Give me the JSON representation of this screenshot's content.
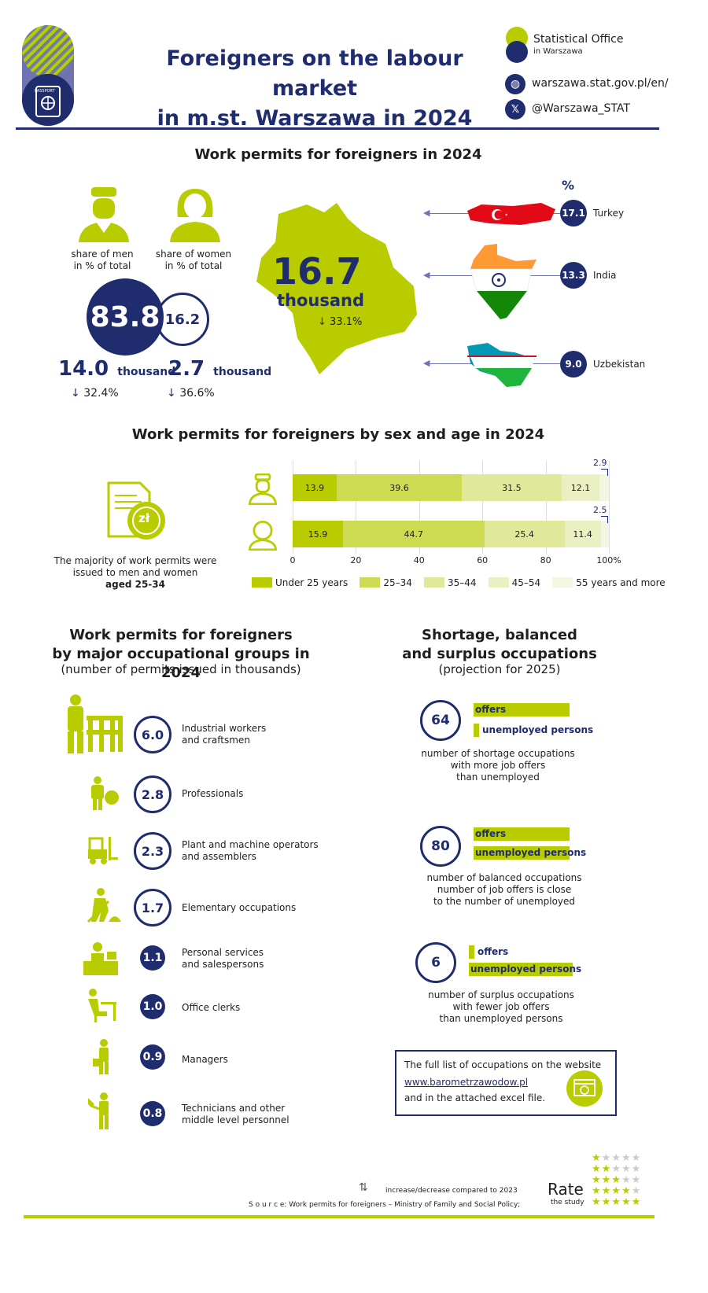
{
  "header": {
    "title_line1": "Foreigners on the labour market",
    "title_line2": "in m.st. Warszawa in 2024",
    "org_name": "Statistical Office",
    "org_sub": "in Warszawa",
    "website": "warszawa.stat.gov.pl/en/",
    "twitter": "@Warszawa_STAT",
    "passport_label": "PASSPORT"
  },
  "permits": {
    "title": "Work permits for foreigners in 2024",
    "men_label_1": "share of men",
    "men_label_2": "in % of total",
    "women_label_1": "share of women",
    "women_label_2": "in % of total",
    "men_share": "83.8",
    "women_share": "16.2",
    "men_total": "14.0",
    "women_total": "2.7",
    "thousand": "thousand",
    "men_change": "32.4%",
    "women_change": "36.6%",
    "arrow_down": "↓",
    "total": "16.7",
    "total_unit": "thousand",
    "total_change": "33.1%",
    "percent_symbol": "%",
    "countries": [
      {
        "name": "Turkey",
        "value": "17.1"
      },
      {
        "name": "India",
        "value": "13.3"
      },
      {
        "name": "Uzbekistan",
        "value": "9.0"
      }
    ]
  },
  "age": {
    "title": "Work permits for foreigners by sex and age in 2024",
    "note_1": "The majority of work permits were",
    "note_2": "issued to men and women",
    "note_3": "aged 25-34",
    "currency": "zł",
    "axis_ticks": [
      "0",
      "20",
      "40",
      "60",
      "80",
      "100%"
    ],
    "colors": [
      "#b8cc00",
      "#cddb53",
      "#e0e89a",
      "#ebf0c2",
      "#f3f6e0"
    ],
    "chart_data": {
      "type": "bar",
      "categories": [
        "Men",
        "Women"
      ],
      "series": [
        {
          "name": "Under 25 years",
          "values": [
            13.9,
            15.9
          ]
        },
        {
          "name": "25–34",
          "values": [
            39.6,
            44.7
          ]
        },
        {
          "name": "35–44",
          "values": [
            31.5,
            25.4
          ]
        },
        {
          "name": "45–54",
          "values": [
            12.1,
            11.4
          ]
        },
        {
          "name": "55 years and more",
          "values": [
            2.9,
            2.5
          ]
        }
      ],
      "xlim": [
        0,
        100
      ],
      "stacked": true,
      "orientation": "horizontal",
      "legend": "bottom"
    }
  },
  "occupations": {
    "title_1": "Work permits for foreigners",
    "title_2": "by major occupational groups in 2024",
    "subtitle": "(number of permits issued in thousands)",
    "items": [
      {
        "value": "6.0",
        "label_1": "Industrial workers",
        "label_2": "and craftsmen"
      },
      {
        "value": "2.8",
        "label_1": "Professionals",
        "label_2": ""
      },
      {
        "value": "2.3",
        "label_1": "Plant and machine operators",
        "label_2": "and assemblers"
      },
      {
        "value": "1.7",
        "label_1": "Elementary occupations",
        "label_2": ""
      },
      {
        "value": "1.1",
        "label_1": "Personal services",
        "label_2": "and salespersons"
      },
      {
        "value": "1.0",
        "label_1": "Office clerks",
        "label_2": ""
      },
      {
        "value": "0.9",
        "label_1": "Managers",
        "label_2": ""
      },
      {
        "value": "0.8",
        "label_1": "Technicians and other",
        "label_2": "middle level personnel"
      }
    ]
  },
  "shortage": {
    "title_1": "Shortage, balanced",
    "title_2": "and surplus occupations",
    "subtitle": "(projection for 2025)",
    "offers": "offers",
    "unemployed": "unemployed persons",
    "groups": [
      {
        "value": "64",
        "desc_1": "number of shortage occupations",
        "desc_2": "with more job offers",
        "desc_3": "than unemployed"
      },
      {
        "value": "80",
        "desc_1": "number of balanced occupations",
        "desc_2": "number of job offers is close",
        "desc_3": "to the number of unemployed"
      },
      {
        "value": "6",
        "desc_1": "number of surplus occupations",
        "desc_2": "with fewer job offers",
        "desc_3": "than unemployed persons"
      }
    ],
    "box_line1": "The full list of occupations on the website",
    "box_link": "www.barometrzawodow.pl",
    "box_line3": "and in the attached excel file."
  },
  "footer": {
    "legend": "increase/decrease compared to 2023",
    "source": "S o u r c e: Work permits for foreigners – Ministry of Family and Social Policy;",
    "rate": "Rate",
    "rate_sub": "the study"
  }
}
